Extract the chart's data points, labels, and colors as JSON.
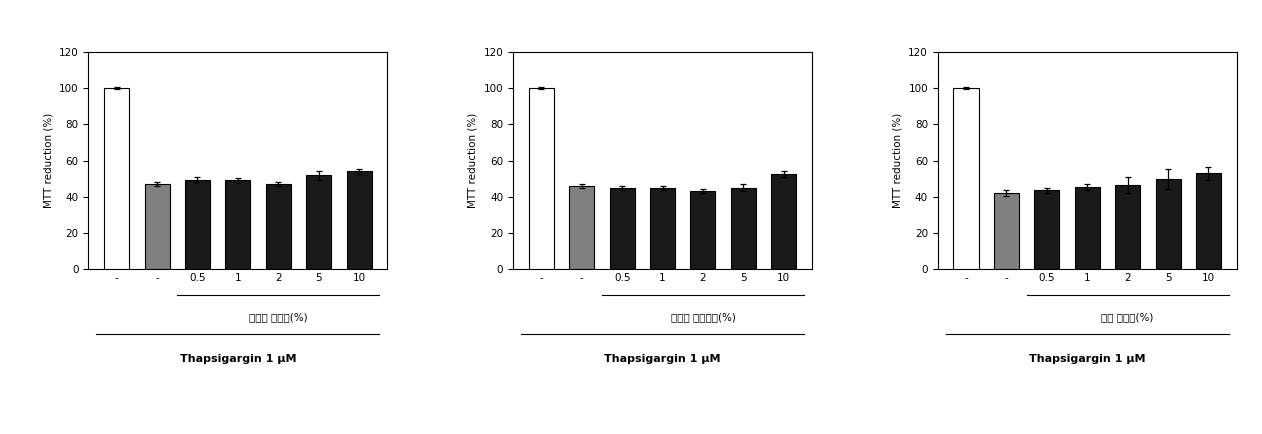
{
  "panels": [
    {
      "ylabel": "MTT reduction (%)",
      "xtick_labels": [
        "-",
        "-",
        "0.5",
        "1",
        "2",
        "5",
        "10"
      ],
      "bar_colors": [
        "#ffffff",
        "#808080",
        "#1a1a1a",
        "#1a1a1a",
        "#1a1a1a",
        "#1a1a1a",
        "#1a1a1a"
      ],
      "bar_heights": [
        100,
        47,
        49.5,
        49,
        47,
        52,
        54
      ],
      "bar_errors": [
        0.5,
        1.2,
        1.5,
        1.2,
        1.0,
        2.5,
        1.5
      ],
      "group_label": "카카오 쳊가군(%)",
      "bottom_label": "Thapsigargin 1 μM",
      "ylim": [
        0,
        120
      ],
      "yticks": [
        0,
        20,
        40,
        60,
        80,
        100,
        120
      ]
    },
    {
      "ylabel": "MTT reduction (%)",
      "xtick_labels": [
        "-",
        "-",
        "0.5",
        "1",
        "2",
        "5",
        "10"
      ],
      "bar_colors": [
        "#ffffff",
        "#808080",
        "#1a1a1a",
        "#1a1a1a",
        "#1a1a1a",
        "#1a1a1a",
        "#1a1a1a"
      ],
      "bar_heights": [
        100,
        46,
        45,
        45,
        43,
        45,
        52.5
      ],
      "bar_errors": [
        0.5,
        1.2,
        1.2,
        1.2,
        1.2,
        1.8,
        1.5
      ],
      "group_label": "카카오 무쳊가군(%)",
      "bottom_label": "Thapsigargin 1 μM",
      "ylim": [
        0,
        120
      ],
      "yticks": [
        0,
        20,
        40,
        60,
        80,
        100,
        120
      ]
    },
    {
      "ylabel": "MTT reduction (%)",
      "xtick_labels": [
        "-",
        "-",
        "0.5",
        "1",
        "2",
        "5",
        "10"
      ],
      "bar_colors": [
        "#ffffff",
        "#808080",
        "#1a1a1a",
        "#1a1a1a",
        "#1a1a1a",
        "#1a1a1a",
        "#1a1a1a"
      ],
      "bar_heights": [
        100,
        42,
        43.5,
        45.5,
        46.5,
        50,
        53
      ],
      "bar_errors": [
        0.5,
        1.5,
        1.5,
        1.5,
        4.5,
        5.5,
        3.5
      ],
      "group_label": "홍초 쳊가군(%)",
      "bottom_label": "Thapsigargin 1 μM",
      "ylim": [
        0,
        120
      ],
      "yticks": [
        0,
        20,
        40,
        60,
        80,
        100,
        120
      ]
    }
  ],
  "bg_color": "#ffffff",
  "bar_edgecolor": "#000000",
  "bar_linewidth": 0.8,
  "bar_width": 0.62,
  "fontsize_ylabel": 7.5,
  "fontsize_tick": 7.5,
  "fontsize_grouplabel": 7.5,
  "fontsize_bottomlabel": 8.0
}
